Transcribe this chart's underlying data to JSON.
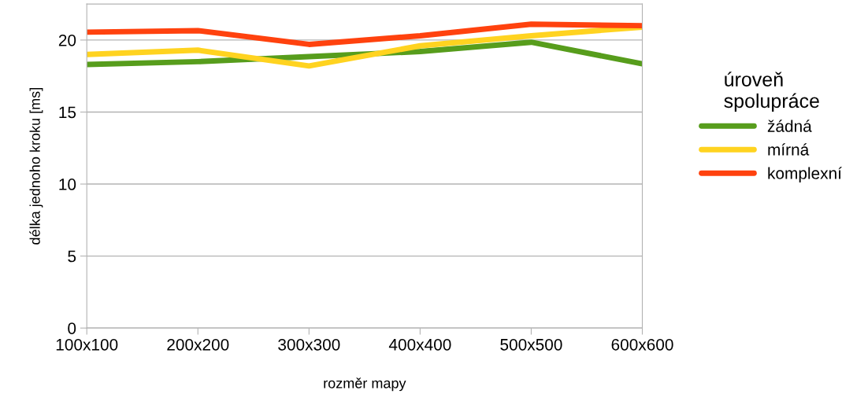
{
  "chart_data": {
    "type": "line",
    "xlabel": "rozměr mapy",
    "ylabel": "délka jednoho kroku [ms]",
    "legend_title": "úroveň\nspolupráce",
    "categories": [
      "100x100",
      "200x200",
      "300x300",
      "400x400",
      "500x500",
      "600x600"
    ],
    "series": [
      {
        "name": "žádná",
        "color": "#579d1c",
        "values": [
          18.3,
          18.5,
          18.85,
          19.2,
          19.85,
          18.35
        ]
      },
      {
        "name": "mírná",
        "color": "#ffd320",
        "values": [
          19.0,
          19.3,
          18.2,
          19.6,
          20.3,
          20.9
        ]
      },
      {
        "name": "komplexní",
        "color": "#ff420e",
        "values": [
          20.55,
          20.65,
          19.7,
          20.3,
          21.1,
          21.0
        ]
      }
    ],
    "ylim": [
      0,
      22.5
    ],
    "yticks": [
      0,
      5,
      10,
      15,
      20
    ],
    "grid": "y",
    "legend": "right",
    "marker": "none",
    "line_style": "solid"
  }
}
